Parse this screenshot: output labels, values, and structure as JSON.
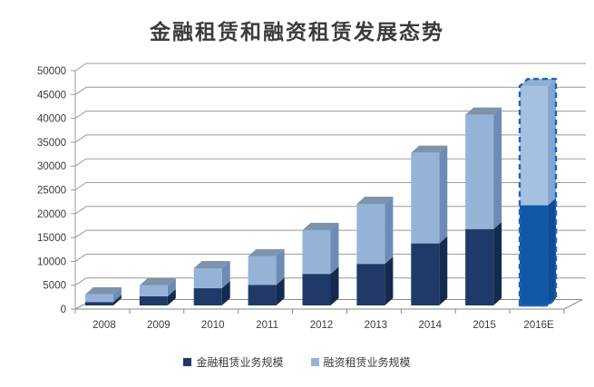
{
  "chart_data": {
    "type": "bar",
    "stacked": true,
    "pseudo_3d": true,
    "title": "金融租赁和融资租赁发展态势",
    "categories": [
      "2008",
      "2009",
      "2010",
      "2011",
      "2012",
      "2013",
      "2014",
      "2015",
      "2016E"
    ],
    "series": [
      {
        "name": "金融租赁业务规模",
        "values": [
          700,
          1900,
          3600,
          4300,
          6600,
          8700,
          13000,
          16000,
          21000
        ]
      },
      {
        "name": "融资租赁业务规模",
        "values": [
          1600,
          2300,
          4200,
          6000,
          9200,
          12600,
          19000,
          24000,
          25000
        ]
      }
    ],
    "totals": [
      2300,
      4200,
      7800,
      10300,
      15800,
      21300,
      32000,
      40000,
      46000
    ],
    "estimate_category": "2016E",
    "ylim": [
      0,
      50000
    ],
    "y_ticks": [
      0,
      5000,
      10000,
      15000,
      20000,
      25000,
      30000,
      35000,
      40000,
      45000,
      50000
    ],
    "grid": true,
    "legend_position": "bottom"
  },
  "colors": {
    "series1_front": "#1f3a68",
    "series1_side": "#142a4e",
    "series2_front": "#95b3d7",
    "series2_side": "#6c8cb5",
    "bar_top": "#7e93aa",
    "est_series1_front": "#1157a8",
    "est_series1_side": "#0f4c96",
    "est_series2_front": "#a6c1e0",
    "est_series2_side": "#7fa6d0",
    "est_top": "#8fb0d4",
    "estimate_border": "#1c64b8",
    "gridline": "#9a9a9a",
    "axis_line": "#8a8a8a",
    "axis_text": "#3a3a3a",
    "title_text": "#3b3b3b",
    "background": "#ffffff"
  }
}
